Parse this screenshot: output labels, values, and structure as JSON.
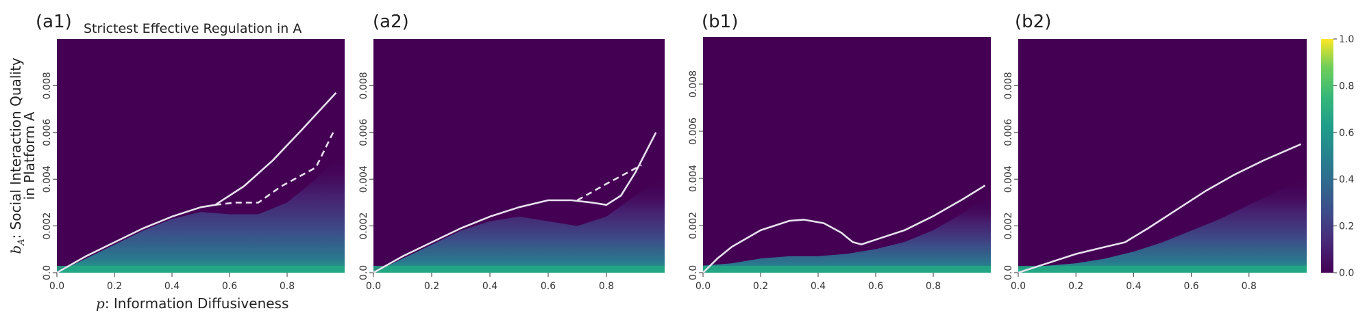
{
  "colors": {
    "v0": "#440154",
    "v02": "#3b528b",
    "v04": "#21918c",
    "v06": "#5ec962",
    "v10": "#fde725",
    "curve": "#e8e2ee"
  },
  "figure": {
    "title": "Strictest Effective Regulation in A",
    "ylabel_prefix": "b",
    "ylabel_sub": "A",
    "ylabel_line1": ": Social Interaction Quality",
    "ylabel_line2": "in Platform A",
    "xlabel_prefix": "p",
    "xlabel_text": ": Information Diffusiveness"
  },
  "colorbar": {
    "ticks": [
      "0.0",
      "0.2",
      "0.4",
      "0.6",
      "0.8",
      "1.0"
    ]
  },
  "chart_data": [
    {
      "type": "heatmap",
      "panel": "(a1)",
      "title": "Strictest Effective Regulation in A",
      "xlabel": "p: Information Diffusiveness",
      "ylabel": "b_A: Social Interaction Quality in Platform A",
      "xlim": [
        0,
        1
      ],
      "ylim": [
        0,
        0.01
      ],
      "x_ticks": [
        "0.0",
        "0.2",
        "0.4",
        "0.6",
        "0.8"
      ],
      "y_ticks": [
        "0.0",
        "0.002",
        "0.004",
        "0.006",
        "0.008"
      ],
      "colorscale": "viridis",
      "zlim": [
        0,
        1
      ],
      "solid_curve": [
        [
          0.0,
          0.0
        ],
        [
          0.1,
          0.0007
        ],
        [
          0.2,
          0.0013
        ],
        [
          0.3,
          0.0019
        ],
        [
          0.4,
          0.0024
        ],
        [
          0.5,
          0.0028
        ],
        [
          0.55,
          0.0029
        ],
        [
          0.65,
          0.0037
        ],
        [
          0.75,
          0.0048
        ],
        [
          0.85,
          0.0061
        ],
        [
          0.97,
          0.0077
        ]
      ],
      "dashed_curve": [
        [
          0.55,
          0.0029
        ],
        [
          0.62,
          0.003
        ],
        [
          0.7,
          0.003
        ],
        [
          0.78,
          0.0037
        ],
        [
          0.9,
          0.0045
        ],
        [
          0.96,
          0.006
        ]
      ],
      "surface_edge": [
        [
          0.0,
          0.0
        ],
        [
          0.1,
          0.0006
        ],
        [
          0.2,
          0.0012
        ],
        [
          0.3,
          0.0018
        ],
        [
          0.4,
          0.0023
        ],
        [
          0.5,
          0.0026
        ],
        [
          0.6,
          0.0025
        ],
        [
          0.7,
          0.0025
        ],
        [
          0.8,
          0.003
        ],
        [
          0.9,
          0.004
        ],
        [
          0.98,
          0.005
        ]
      ]
    },
    {
      "type": "heatmap",
      "panel": "(a2)",
      "xlim": [
        0,
        1
      ],
      "ylim": [
        0,
        0.01
      ],
      "x_ticks": [
        "0.0",
        "0.2",
        "0.4",
        "0.6",
        "0.8"
      ],
      "y_ticks": [
        "0.0",
        "0.002",
        "0.004",
        "0.006",
        "0.008"
      ],
      "colorscale": "viridis",
      "zlim": [
        0,
        1
      ],
      "solid_curve": [
        [
          0.0,
          0.0
        ],
        [
          0.1,
          0.0007
        ],
        [
          0.2,
          0.0013
        ],
        [
          0.3,
          0.0019
        ],
        [
          0.4,
          0.0024
        ],
        [
          0.5,
          0.0028
        ],
        [
          0.6,
          0.0031
        ],
        [
          0.68,
          0.0031
        ],
        [
          0.75,
          0.003
        ],
        [
          0.8,
          0.0029
        ],
        [
          0.85,
          0.0033
        ],
        [
          0.9,
          0.0043
        ],
        [
          0.97,
          0.006
        ]
      ],
      "dashed_curve": [
        [
          0.7,
          0.0031
        ],
        [
          0.8,
          0.0038
        ],
        [
          0.92,
          0.0046
        ]
      ],
      "surface_edge": [
        [
          0.0,
          0.0
        ],
        [
          0.1,
          0.0006
        ],
        [
          0.2,
          0.0012
        ],
        [
          0.3,
          0.0018
        ],
        [
          0.4,
          0.0022
        ],
        [
          0.5,
          0.0024
        ],
        [
          0.6,
          0.0022
        ],
        [
          0.7,
          0.002
        ],
        [
          0.8,
          0.0024
        ],
        [
          0.9,
          0.0033
        ],
        [
          0.98,
          0.004
        ]
      ]
    },
    {
      "type": "heatmap",
      "panel": "(b1)",
      "xlim": [
        0,
        1
      ],
      "ylim": [
        0,
        0.01
      ],
      "x_ticks": [
        "0.0",
        "0.2",
        "0.4",
        "0.6",
        "0.8"
      ],
      "y_ticks": [
        "0.0",
        "0.002",
        "0.004",
        "0.006",
        "0.008"
      ],
      "colorscale": "viridis",
      "zlim": [
        0,
        1
      ],
      "solid_curve": [
        [
          0.0,
          0.0
        ],
        [
          0.05,
          0.0006
        ],
        [
          0.1,
          0.0011
        ],
        [
          0.2,
          0.0018
        ],
        [
          0.3,
          0.0022
        ],
        [
          0.35,
          0.00225
        ],
        [
          0.42,
          0.0021
        ],
        [
          0.48,
          0.0017
        ],
        [
          0.52,
          0.0013
        ],
        [
          0.55,
          0.0012
        ],
        [
          0.6,
          0.0014
        ],
        [
          0.7,
          0.0018
        ],
        [
          0.8,
          0.0024
        ],
        [
          0.9,
          0.0031
        ],
        [
          0.98,
          0.0037
        ]
      ],
      "dashed_curve": [],
      "surface_edge": [
        [
          0.0,
          0.0003
        ],
        [
          0.1,
          0.0004
        ],
        [
          0.2,
          0.0006
        ],
        [
          0.3,
          0.0007
        ],
        [
          0.4,
          0.0007
        ],
        [
          0.5,
          0.0008
        ],
        [
          0.6,
          0.001
        ],
        [
          0.7,
          0.0013
        ],
        [
          0.8,
          0.0018
        ],
        [
          0.9,
          0.0025
        ],
        [
          0.98,
          0.0032
        ]
      ]
    },
    {
      "type": "heatmap",
      "panel": "(b2)",
      "xlim": [
        0,
        1
      ],
      "ylim": [
        0,
        0.01
      ],
      "x_ticks": [
        "0.0",
        "0.2",
        "0.4",
        "0.6",
        "0.8"
      ],
      "y_ticks": [
        "0.0",
        "0.002",
        "0.004",
        "0.006",
        "0.008"
      ],
      "colorscale": "viridis",
      "zlim": [
        0,
        1
      ],
      "solid_curve": [
        [
          0.0,
          0.0
        ],
        [
          0.1,
          0.0004
        ],
        [
          0.2,
          0.0008
        ],
        [
          0.3,
          0.0011
        ],
        [
          0.37,
          0.0013
        ],
        [
          0.45,
          0.0019
        ],
        [
          0.55,
          0.0027
        ],
        [
          0.65,
          0.0035
        ],
        [
          0.75,
          0.0042
        ],
        [
          0.85,
          0.0048
        ],
        [
          0.98,
          0.0055
        ]
      ],
      "dashed_curve": [],
      "surface_edge": [
        [
          0.0,
          0.0002
        ],
        [
          0.1,
          0.0003
        ],
        [
          0.2,
          0.0004
        ],
        [
          0.3,
          0.0006
        ],
        [
          0.4,
          0.0009
        ],
        [
          0.5,
          0.0013
        ],
        [
          0.6,
          0.0018
        ],
        [
          0.7,
          0.0023
        ],
        [
          0.8,
          0.0029
        ],
        [
          0.9,
          0.0035
        ],
        [
          0.98,
          0.004
        ]
      ]
    }
  ]
}
